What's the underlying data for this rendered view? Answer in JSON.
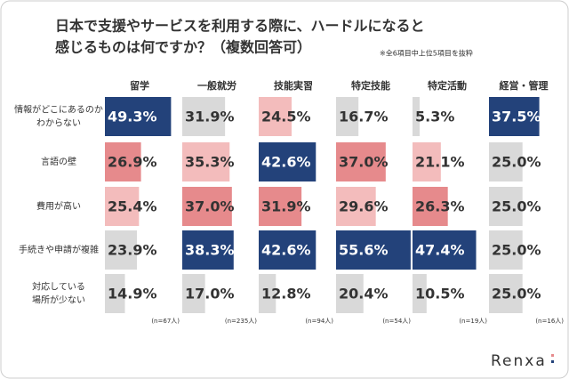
{
  "chart_data": {
    "type": "bar",
    "title": [
      "日本で支援やサービスを利用する際に、ハードルになると",
      "感じるものは何ですか？（複数回答可）"
    ],
    "note": "※全6項目中上位5項目を抜粋",
    "brand": "Renxa",
    "categories": [
      [
        "情報がどこにあるのか",
        "わからない"
      ],
      [
        "言語の壁"
      ],
      [
        "費用が高い"
      ],
      [
        "手続きや申請が複雑"
      ],
      [
        "対応している",
        "場所が少ない"
      ]
    ],
    "xlim": [
      0,
      57
    ],
    "series": [
      {
        "name": "留学",
        "n_label": "(n=67人)",
        "values": [
          49.3,
          26.9,
          25.4,
          23.9,
          14.9
        ],
        "value_labels": [
          "49.3%",
          "26.9%",
          "25.4%",
          "23.9%",
          "14.9%"
        ],
        "colors": [
          "#23427a",
          "#e68a8c",
          "#f3bcbc",
          "#d9d9d9",
          "#d9d9d9"
        ]
      },
      {
        "name": "一般就労",
        "n_label": "(n=235人)",
        "values": [
          31.9,
          35.3,
          37,
          38.3,
          17
        ],
        "value_labels": [
          "31.9%",
          "35.3%",
          "37.0%",
          "38.3%",
          "17.0%"
        ],
        "colors": [
          "#d9d9d9",
          "#f3bcbc",
          "#e68a8c",
          "#23427a",
          "#d9d9d9"
        ]
      },
      {
        "name": "技能実習",
        "n_label": "(n=94人)",
        "values": [
          24.5,
          42.6,
          31.9,
          42.6,
          12.8
        ],
        "value_labels": [
          "24.5%",
          "42.6%",
          "31.9%",
          "42.6%",
          "12.8%"
        ],
        "colors": [
          "#f3bcbc",
          "#23427a",
          "#e68a8c",
          "#23427a",
          "#d9d9d9"
        ]
      },
      {
        "name": "特定技能",
        "n_label": "(n=54人)",
        "values": [
          16.7,
          37,
          29.6,
          55.6,
          20.4
        ],
        "value_labels": [
          "16.7%",
          "37.0%",
          "29.6%",
          "55.6%",
          "20.4%"
        ],
        "colors": [
          "#d9d9d9",
          "#e68a8c",
          "#f3bcbc",
          "#23427a",
          "#d9d9d9"
        ]
      },
      {
        "name": "特定活動",
        "n_label": "(n=19人)",
        "values": [
          5.3,
          21.1,
          26.3,
          47.4,
          10.5
        ],
        "value_labels": [
          "5.3%",
          "21.1%",
          "26.3%",
          "47.4%",
          "10.5%"
        ],
        "colors": [
          "#d9d9d9",
          "#f3bcbc",
          "#e68a8c",
          "#23427a",
          "#d9d9d9"
        ]
      },
      {
        "name": "経営・管理",
        "n_label": "(n=16人)",
        "values": [
          37.5,
          25,
          25,
          25,
          25
        ],
        "value_labels": [
          "37.5%",
          "25.0%",
          "25.0%",
          "25.0%",
          "25.0%"
        ],
        "colors": [
          "#23427a",
          "#d9d9d9",
          "#d9d9d9",
          "#d9d9d9",
          "#d9d9d9"
        ]
      }
    ]
  }
}
